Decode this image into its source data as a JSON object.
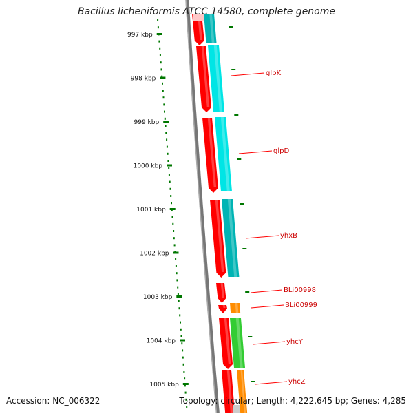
{
  "title": "Bacillus licheniformis ATCC 14580, complete genome",
  "footer": {
    "accession": "Accession: NC_006322",
    "topology": "Topology: circular; Length: 4,222,645 bp; Genes: 4,285"
  },
  "ticks": [
    "997 kbp",
    "998 kbp",
    "999 kbp",
    "1000 kbp",
    "1001 kbp",
    "1002 kbp",
    "1003 kbp",
    "1004 kbp",
    "1005 kbp"
  ],
  "genes": [
    {
      "name": "glpK",
      "color": "#ff0000"
    },
    {
      "name": "glpD",
      "color": "#ff0000"
    },
    {
      "name": "yhxB",
      "color": "#ff0000"
    },
    {
      "name": "BLi00998",
      "color": "#ff0000"
    },
    {
      "name": "BLi00999",
      "color": "#ff0000"
    },
    {
      "name": "yhcY",
      "color": "#ff0000"
    },
    {
      "name": "yhcZ",
      "color": "#ff0000"
    }
  ],
  "colors": {
    "strand_forward": "#ff0000",
    "cds_track_1": "#00e5e5",
    "cds_track_2": "#00b4b4",
    "cds_orange": "#ff8c00",
    "cds_green": "#33cc33",
    "tick_green": "#007700",
    "backbone": "#777777"
  }
}
